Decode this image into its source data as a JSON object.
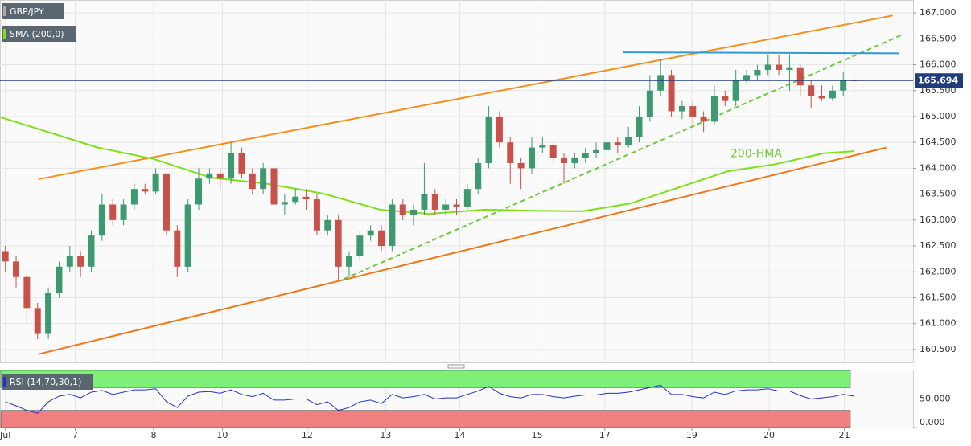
{
  "chart_data": {
    "type": "candlestick",
    "xlim": [
      -0.5,
      84.5
    ],
    "xticks": [
      {
        "value": 0,
        "label": "Jul"
      },
      {
        "value": 6.5,
        "label": "7"
      },
      {
        "value": 13.8,
        "label": "8"
      },
      {
        "value": 20.2,
        "label": "10"
      },
      {
        "value": 28.1,
        "label": "12"
      },
      {
        "value": 35.4,
        "label": "13"
      },
      {
        "value": 42.3,
        "label": "14"
      },
      {
        "value": 49.5,
        "label": "15"
      },
      {
        "value": 55.8,
        "label": "17"
      },
      {
        "value": 63.9,
        "label": "19"
      },
      {
        "value": 71.1,
        "label": "20"
      },
      {
        "value": 78.1,
        "label": "21"
      }
    ],
    "ylim": [
      160.25,
      167.25
    ],
    "yticks": [
      {
        "value": 160.5,
        "label": "160.500"
      },
      {
        "value": 161,
        "label": "161.000"
      },
      {
        "value": 161.5,
        "label": "161.500"
      },
      {
        "value": 162,
        "label": "162.000"
      },
      {
        "value": 162.5,
        "label": "162.500"
      },
      {
        "value": 163,
        "label": "163.000"
      },
      {
        "value": 163.5,
        "label": "163.500"
      },
      {
        "value": 164,
        "label": "164.000"
      },
      {
        "value": 164.5,
        "label": "164.500"
      },
      {
        "value": 165,
        "label": "165.000"
      },
      {
        "value": 165.5,
        "label": "165.500"
      },
      {
        "value": 166,
        "label": "166.000"
      },
      {
        "value": 166.5,
        "label": "166.500"
      },
      {
        "value": 167,
        "label": "167.000"
      }
    ],
    "grid": true,
    "up_color": "#3d9970",
    "down_color": "#c8524a",
    "series": [
      {
        "name": "GBP/JPY",
        "color": "#555555",
        "ohlc": [
          [
            162.4,
            162.5,
            162.0,
            162.2
          ],
          [
            162.2,
            162.3,
            161.7,
            161.9
          ],
          [
            161.9,
            162.0,
            161.0,
            161.3
          ],
          [
            161.3,
            161.4,
            160.7,
            160.8
          ],
          [
            160.8,
            161.7,
            160.7,
            161.6
          ],
          [
            161.6,
            162.2,
            161.5,
            162.1
          ],
          [
            162.1,
            162.5,
            162.0,
            162.3
          ],
          [
            162.3,
            162.4,
            161.9,
            162.1
          ],
          [
            162.1,
            162.8,
            162.0,
            162.7
          ],
          [
            162.7,
            163.5,
            162.6,
            163.3
          ],
          [
            163.3,
            163.4,
            162.9,
            163.0
          ],
          [
            163.0,
            163.4,
            162.9,
            163.3
          ],
          [
            163.3,
            163.7,
            163.2,
            163.6
          ],
          [
            163.6,
            163.7,
            163.5,
            163.55
          ],
          [
            163.55,
            164.0,
            163.5,
            163.9
          ],
          [
            163.9,
            163.9,
            162.7,
            162.8
          ],
          [
            162.8,
            162.9,
            161.9,
            162.1
          ],
          [
            162.1,
            163.4,
            162.0,
            163.3
          ],
          [
            163.3,
            164.0,
            163.2,
            163.8
          ],
          [
            163.8,
            164.0,
            163.7,
            163.9
          ],
          [
            163.9,
            164.0,
            163.6,
            163.8
          ],
          [
            163.8,
            164.5,
            163.7,
            164.3
          ],
          [
            164.3,
            164.4,
            163.8,
            163.9
          ],
          [
            163.9,
            164.0,
            163.5,
            163.6
          ],
          [
            163.6,
            164.1,
            163.5,
            164.0
          ],
          [
            164.0,
            164.1,
            163.2,
            163.3
          ],
          [
            163.3,
            163.5,
            163.1,
            163.35
          ],
          [
            163.35,
            163.6,
            163.3,
            163.45
          ],
          [
            163.45,
            163.6,
            163.2,
            163.4
          ],
          [
            163.4,
            163.5,
            162.7,
            162.8
          ],
          [
            162.8,
            163.1,
            162.7,
            163.0
          ],
          [
            163.0,
            163.1,
            161.85,
            162.1
          ],
          [
            162.1,
            162.4,
            161.9,
            162.3
          ],
          [
            162.3,
            162.8,
            162.2,
            162.7
          ],
          [
            162.7,
            162.9,
            162.6,
            162.8
          ],
          [
            162.8,
            162.9,
            162.4,
            162.5
          ],
          [
            162.5,
            163.4,
            162.4,
            163.3
          ],
          [
            163.3,
            163.4,
            163.0,
            163.1
          ],
          [
            163.1,
            163.3,
            162.9,
            163.2
          ],
          [
            163.2,
            164.1,
            163.1,
            163.5
          ],
          [
            163.5,
            163.6,
            163.1,
            163.2
          ],
          [
            163.2,
            163.4,
            163.1,
            163.3
          ],
          [
            163.3,
            163.4,
            163.1,
            163.25
          ],
          [
            163.25,
            163.7,
            163.2,
            163.6
          ],
          [
            163.6,
            164.2,
            163.5,
            164.1
          ],
          [
            164.1,
            165.2,
            164.0,
            165.0
          ],
          [
            165.0,
            165.1,
            164.4,
            164.5
          ],
          [
            164.5,
            164.6,
            163.7,
            164.1
          ],
          [
            164.1,
            164.2,
            163.6,
            164.0
          ],
          [
            164.0,
            164.6,
            163.9,
            164.4
          ],
          [
            164.4,
            164.6,
            164.3,
            164.45
          ],
          [
            164.45,
            164.5,
            164.1,
            164.2
          ],
          [
            164.2,
            164.3,
            163.7,
            164.1
          ],
          [
            164.1,
            164.3,
            164.0,
            164.2
          ],
          [
            164.2,
            164.4,
            164.1,
            164.3
          ],
          [
            164.3,
            164.5,
            164.2,
            164.35
          ],
          [
            164.35,
            164.6,
            164.3,
            164.5
          ],
          [
            164.5,
            164.6,
            164.3,
            164.45
          ],
          [
            164.45,
            164.8,
            164.4,
            164.6
          ],
          [
            164.6,
            165.2,
            164.5,
            165.0
          ],
          [
            165.0,
            165.8,
            164.9,
            165.5
          ],
          [
            165.5,
            166.1,
            165.4,
            165.8
          ],
          [
            165.8,
            165.9,
            165.0,
            165.1
          ],
          [
            165.1,
            165.3,
            164.95,
            165.2
          ],
          [
            165.2,
            165.3,
            164.85,
            165.0
          ],
          [
            165.0,
            165.1,
            164.7,
            164.9
          ],
          [
            164.9,
            165.6,
            164.85,
            165.4
          ],
          [
            165.4,
            165.5,
            165.2,
            165.3
          ],
          [
            165.3,
            165.9,
            165.2,
            165.7
          ],
          [
            165.7,
            165.9,
            165.65,
            165.8
          ],
          [
            165.8,
            166.0,
            165.7,
            165.9
          ],
          [
            165.9,
            166.2,
            165.8,
            166.0
          ],
          [
            166.0,
            166.2,
            165.8,
            165.9
          ],
          [
            165.9,
            166.2,
            165.5,
            165.95
          ],
          [
            165.95,
            166.0,
            165.4,
            165.6
          ],
          [
            165.6,
            165.7,
            165.15,
            165.4
          ],
          [
            165.4,
            165.6,
            165.3,
            165.35
          ],
          [
            165.35,
            165.6,
            165.3,
            165.5
          ],
          [
            165.5,
            165.85,
            165.4,
            165.7
          ],
          [
            165.7,
            165.9,
            165.45,
            165.694
          ]
        ]
      },
      {
        "name": "SMA (200,0)",
        "color": "#7ee01a",
        "x": [
          -0.5,
          8.6,
          13.8,
          19.1,
          24.4,
          29.6,
          34.9,
          39.4,
          44.7,
          49.2,
          53.7,
          58.2,
          62.7,
          67.2,
          71.7,
          76.2,
          79.0
        ],
        "values": [
          164.99,
          164.4,
          164.18,
          163.82,
          163.7,
          163.51,
          163.2,
          163.12,
          163.2,
          163.18,
          163.17,
          163.32,
          163.63,
          163.94,
          164.08,
          164.29,
          164.33
        ]
      }
    ],
    "trendlines": [
      {
        "color": "#f5901e",
        "dashed": false,
        "x": [
          3.1,
          82.6
        ],
        "values": [
          163.79,
          166.95
        ]
      },
      {
        "color": "#f07818",
        "dashed": false,
        "x": [
          3.1,
          82.0
        ],
        "values": [
          160.41,
          164.4
        ]
      },
      {
        "color": "#6cc93a",
        "dashed": true,
        "x": [
          31.5,
          83.5
        ],
        "values": [
          161.86,
          166.58
        ]
      },
      {
        "color": "#2d9ad6",
        "dashed": false,
        "x": [
          57.5,
          83.2
        ],
        "values": [
          166.24,
          166.22
        ]
      }
    ],
    "annotation": {
      "text": "200-HMA",
      "x": 67.5,
      "y": 164.28
    },
    "rsi": {
      "name": "RSI (14,70,30,1)",
      "color": "#2233cc",
      "ylim": [
        0,
        100
      ],
      "yticks": [
        {
          "value": 0,
          "label": "0.000"
        },
        {
          "value": 50,
          "label": "50.000"
        }
      ],
      "overbought": 70,
      "oversold": 30,
      "values": [
        45,
        38,
        30,
        25,
        45,
        55,
        58,
        52,
        62,
        65,
        58,
        62,
        66,
        66,
        68,
        45,
        35,
        55,
        62,
        63,
        60,
        66,
        58,
        54,
        60,
        48,
        48,
        50,
        50,
        40,
        45,
        30,
        35,
        45,
        48,
        42,
        58,
        52,
        54,
        58,
        50,
        52,
        52,
        58,
        64,
        72,
        60,
        54,
        52,
        58,
        58,
        54,
        52,
        55,
        57,
        57,
        60,
        60,
        62,
        66,
        70,
        74,
        58,
        58,
        54,
        52,
        62,
        58,
        64,
        66,
        66,
        68,
        64,
        64,
        56,
        50,
        52,
        54,
        58,
        55
      ]
    }
  }
}
